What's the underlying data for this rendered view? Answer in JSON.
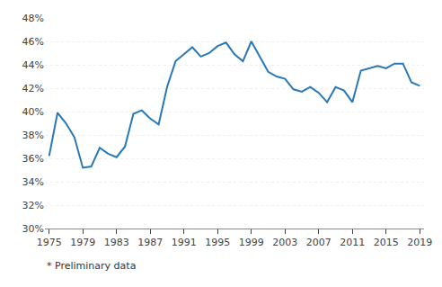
{
  "chart_data": {
    "type": "line",
    "x": [
      1975,
      1976,
      1977,
      1978,
      1979,
      1980,
      1981,
      1982,
      1983,
      1984,
      1985,
      1986,
      1987,
      1988,
      1989,
      1990,
      1991,
      1992,
      1993,
      1994,
      1995,
      1996,
      1997,
      1998,
      1999,
      2000,
      2001,
      2002,
      2003,
      2004,
      2005,
      2006,
      2007,
      2008,
      2009,
      2010,
      2011,
      2012,
      2013,
      2014,
      2015,
      2016,
      2017,
      2018,
      2019
    ],
    "values": [
      36.2,
      39.9,
      39.0,
      37.8,
      35.2,
      35.3,
      36.9,
      36.4,
      36.1,
      37.0,
      39.8,
      40.1,
      39.4,
      38.9,
      42.1,
      44.3,
      44.9,
      45.5,
      44.7,
      45.0,
      45.6,
      45.9,
      44.9,
      44.3,
      46.0,
      44.7,
      43.4,
      43.0,
      42.8,
      41.9,
      41.7,
      42.1,
      41.6,
      40.8,
      42.1,
      41.8,
      40.8,
      43.5,
      43.7,
      43.9,
      43.7,
      44.1,
      44.1,
      42.5,
      42.2
    ],
    "color": "#2878b8",
    "xlim": [
      1974.5,
      2019.5
    ],
    "xticks": [
      1975,
      1979,
      1983,
      1987,
      1991,
      1995,
      1999,
      2003,
      2007,
      2011,
      2015,
      2019
    ],
    "ylim": [
      30,
      48
    ],
    "yticks": [
      {
        "value": 30,
        "label": "30%"
      },
      {
        "value": 32,
        "label": "32%"
      },
      {
        "value": 34,
        "label": "34%"
      },
      {
        "value": 36,
        "label": "36%"
      },
      {
        "value": 38,
        "label": "38%"
      },
      {
        "value": 40,
        "label": "40%"
      },
      {
        "value": 42,
        "label": "42%"
      },
      {
        "value": 44,
        "label": "44%"
      },
      {
        "value": 46,
        "label": "46%"
      },
      {
        "value": 48,
        "label": "48%"
      }
    ],
    "grid": "y",
    "annotations": [
      "* Preliminary data"
    ]
  }
}
